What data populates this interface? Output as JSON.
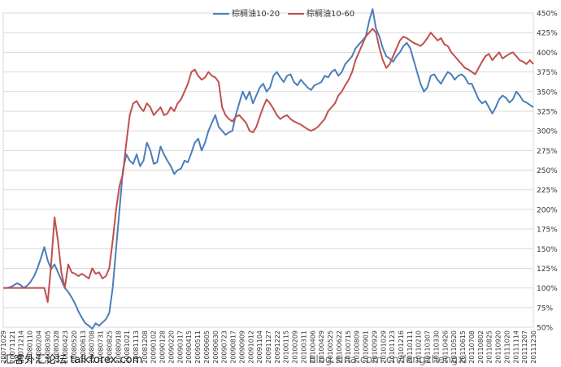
{
  "chart_data": {
    "type": "line",
    "title": "",
    "xlabel": "",
    "ylabel": "",
    "ylim": [
      50,
      450
    ],
    "yticks": [
      50,
      75,
      100,
      125,
      150,
      175,
      200,
      225,
      250,
      275,
      300,
      325,
      350,
      375,
      400,
      425,
      450
    ],
    "ytick_labels": [
      "50%",
      "75%",
      "100%",
      "125%",
      "150%",
      "175%",
      "200%",
      "225%",
      "250%",
      "275%",
      "300%",
      "325%",
      "350%",
      "375%",
      "400%",
      "425%",
      "450%"
    ],
    "x_tick_labels": [
      "20071029",
      "20071121",
      "20071214",
      "20080110",
      "20080204",
      "20080305",
      "20080328",
      "20080423",
      "20080520",
      "20080613",
      "20080708",
      "20080731",
      "20080825",
      "20080918",
      "20081021",
      "20081113",
      "20081208",
      "20090102",
      "20090128",
      "20090220",
      "20090317",
      "20090415",
      "20090511",
      "20090605",
      "20090630",
      "20090723",
      "20090817",
      "20090909",
      "20091012",
      "20091104",
      "20091127",
      "20091222",
      "20100115",
      "20100209",
      "20100311",
      "20100406",
      "20100429",
      "20100525",
      "20100622",
      "20100715",
      "20100809",
      "20100901",
      "20100929",
      "20101029",
      "20101123",
      "20101216",
      "20110111",
      "20110210",
      "20110307",
      "20110330",
      "20110426",
      "20110520",
      "20110615",
      "20110708",
      "20110802",
      "20110825",
      "20110920",
      "20111020",
      "20111114",
      "20111207",
      "20111230"
    ],
    "grid": true,
    "legend_position": "top",
    "series": [
      {
        "name": "棕榈油10-20",
        "color": "#4a7ebb",
        "values": [
          100,
          100,
          101,
          103,
          106,
          104,
          100,
          103,
          108,
          115,
          125,
          138,
          152,
          135,
          124,
          130,
          120,
          110,
          100,
          95,
          88,
          80,
          70,
          62,
          55,
          52,
          48,
          55,
          52,
          56,
          60,
          68,
          100,
          150,
          200,
          250,
          270,
          262,
          258,
          270,
          255,
          262,
          285,
          275,
          258,
          260,
          280,
          270,
          262,
          255,
          245,
          250,
          252,
          262,
          260,
          272,
          285,
          290,
          275,
          285,
          300,
          310,
          320,
          305,
          300,
          295,
          298,
          300,
          320,
          335,
          350,
          340,
          350,
          335,
          345,
          355,
          360,
          350,
          355,
          370,
          375,
          368,
          362,
          370,
          372,
          362,
          358,
          365,
          360,
          355,
          352,
          358,
          360,
          362,
          370,
          368,
          375,
          378,
          370,
          375,
          385,
          390,
          395,
          405,
          410,
          415,
          420,
          440,
          455,
          430,
          420,
          405,
          395,
          392,
          388,
          395,
          400,
          408,
          412,
          405,
          390,
          375,
          360,
          350,
          355,
          370,
          372,
          365,
          360,
          368,
          375,
          372,
          365,
          370,
          372,
          368,
          360,
          360,
          350,
          340,
          335,
          338,
          330,
          322,
          330,
          340,
          345,
          342,
          336,
          340,
          350,
          345,
          338,
          336,
          333,
          330
        ]
      },
      {
        "name": "棕榈油10-60",
        "color": "#c0504d",
        "values": [
          100,
          100,
          100,
          100,
          100,
          100,
          100,
          100,
          100,
          100,
          100,
          100,
          100,
          82,
          130,
          190,
          160,
          120,
          100,
          130,
          120,
          118,
          115,
          118,
          115,
          112,
          125,
          118,
          120,
          112,
          115,
          125,
          160,
          200,
          230,
          245,
          285,
          320,
          335,
          338,
          330,
          325,
          335,
          330,
          320,
          325,
          330,
          320,
          322,
          330,
          325,
          335,
          340,
          350,
          360,
          375,
          378,
          370,
          365,
          368,
          375,
          370,
          368,
          362,
          330,
          320,
          315,
          312,
          318,
          320,
          315,
          310,
          300,
          298,
          305,
          318,
          330,
          340,
          335,
          328,
          320,
          315,
          318,
          320,
          315,
          312,
          310,
          308,
          305,
          302,
          300,
          302,
          305,
          310,
          315,
          325,
          330,
          335,
          345,
          350,
          358,
          365,
          375,
          390,
          400,
          410,
          420,
          425,
          430,
          425,
          405,
          390,
          380,
          385,
          395,
          405,
          415,
          420,
          418,
          415,
          412,
          410,
          408,
          412,
          418,
          425,
          420,
          415,
          418,
          410,
          408,
          400,
          395,
          390,
          385,
          380,
          378,
          375,
          372,
          380,
          388,
          395,
          398,
          390,
          395,
          400,
          392,
          395,
          398,
          400,
          395,
          390,
          388,
          385,
          390,
          385
        ]
      }
    ]
  },
  "watermark": {
    "left_text": "汇客外汇论坛 talkforex.com",
    "right_text": "blog.sina.com.cn/fengzhengxi"
  }
}
